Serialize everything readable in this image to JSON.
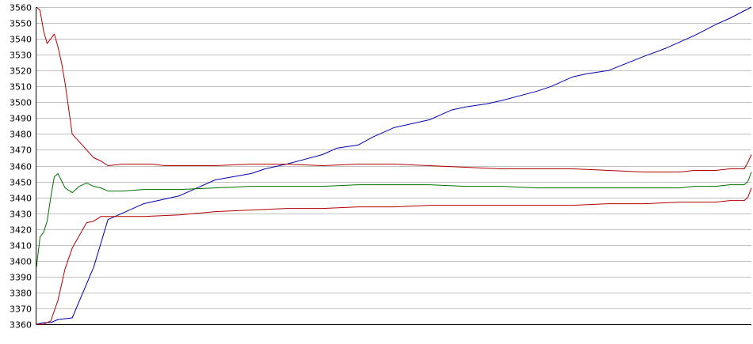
{
  "chart_data": {
    "type": "line",
    "title": "",
    "xlabel": "",
    "ylabel": "",
    "ylim": [
      3360,
      3560
    ],
    "y_ticks": [
      "3560",
      "3550",
      "3540",
      "3530",
      "3520",
      "3510",
      "3500",
      "3490",
      "3480",
      "3470",
      "3460",
      "3450",
      "3440",
      "3430",
      "3420",
      "3410",
      "3400",
      "3390",
      "3380",
      "3370",
      "3360"
    ],
    "grid": true,
    "legend": "none",
    "colors": {
      "blue_series": "#0000b0",
      "upper_red_series": "#b00000",
      "green_series": "#007000",
      "lower_red_series": "#b00000",
      "grid": "#c0c0c0",
      "axis": "#000000"
    },
    "x_range": [
      0,
      100
    ],
    "series": [
      {
        "x": [
          0,
          1,
          2,
          3,
          5,
          8,
          10,
          15,
          17,
          20,
          25,
          30,
          32,
          35,
          40,
          42,
          45,
          47,
          50,
          55,
          58,
          60,
          63,
          65,
          70,
          72,
          75,
          77,
          80,
          85,
          88,
          90,
          92,
          95,
          97,
          100
        ],
        "values": [
          3360,
          3361,
          3361,
          3363,
          3364,
          3396,
          3426,
          3436,
          3438,
          3441,
          3451,
          3455,
          3458,
          3461,
          3467,
          3471,
          3473,
          3478,
          3484,
          3489,
          3495,
          3497,
          3499,
          3501,
          3507,
          3510,
          3516,
          3518,
          3520,
          3529,
          3534,
          3538,
          3542,
          3549,
          3553,
          3560
        ]
      },
      {
        "x": [
          0,
          0.5,
          1,
          1.5,
          2,
          2.5,
          3,
          3.5,
          4,
          5,
          6,
          7,
          8,
          9,
          10,
          12,
          14,
          16,
          18,
          20,
          25,
          30,
          35,
          40,
          45,
          50,
          55,
          60,
          65,
          70,
          75,
          80,
          85,
          90,
          92,
          95,
          97,
          98,
          99,
          99.5,
          100
        ],
        "values": [
          3560,
          3558,
          3545,
          3537,
          3540,
          3543,
          3535,
          3525,
          3512,
          3480,
          3475,
          3470,
          3465,
          3463,
          3460,
          3461,
          3461,
          3461,
          3460,
          3460,
          3460,
          3461,
          3461,
          3460,
          3461,
          3461,
          3460,
          3459,
          3458,
          3458,
          3458,
          3457,
          3456,
          3456,
          3457,
          3457,
          3458,
          3458,
          3458,
          3462,
          3467
        ]
      },
      {
        "x": [
          0,
          0.5,
          1,
          1.5,
          2,
          2.5,
          3,
          4,
          5,
          6,
          7,
          8,
          9,
          10,
          12,
          15,
          20,
          25,
          30,
          35,
          40,
          45,
          50,
          55,
          60,
          65,
          70,
          75,
          80,
          85,
          90,
          92,
          95,
          97,
          99,
          99.5,
          100
        ],
        "values": [
          3396,
          3415,
          3418,
          3425,
          3440,
          3453,
          3455,
          3446,
          3443,
          3447,
          3449,
          3447,
          3446,
          3444,
          3444,
          3445,
          3445,
          3446,
          3447,
          3447,
          3447,
          3448,
          3448,
          3448,
          3447,
          3447,
          3446,
          3446,
          3446,
          3446,
          3446,
          3447,
          3447,
          3448,
          3448,
          3450,
          3456
        ]
      },
      {
        "x": [
          0,
          1,
          2,
          3,
          4,
          5,
          6,
          7,
          8,
          9,
          10,
          12,
          15,
          20,
          25,
          30,
          35,
          40,
          45,
          50,
          55,
          60,
          65,
          70,
          75,
          80,
          85,
          90,
          92,
          95,
          97,
          99,
          99.5,
          100
        ],
        "values": [
          3360,
          3360,
          3362,
          3375,
          3395,
          3408,
          3416,
          3424,
          3425,
          3428,
          3428,
          3428,
          3428,
          3429,
          3431,
          3432,
          3433,
          3433,
          3434,
          3434,
          3435,
          3435,
          3435,
          3435,
          3435,
          3436,
          3436,
          3437,
          3437,
          3437,
          3438,
          3438,
          3440,
          3446
        ]
      }
    ]
  }
}
